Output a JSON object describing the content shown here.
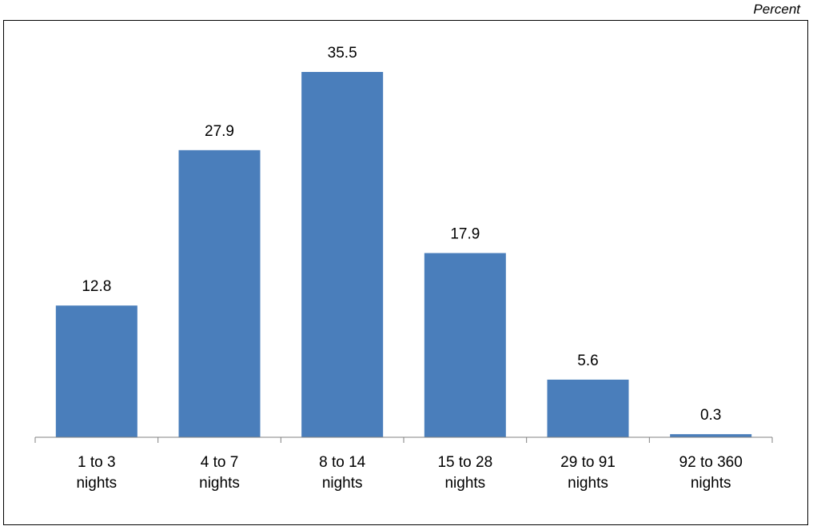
{
  "unit_label": "Percent",
  "chart_data": {
    "type": "bar",
    "categories": [
      [
        "1 to 3",
        "nights"
      ],
      [
        "4 to 7",
        "nights"
      ],
      [
        "8 to 14",
        "nights"
      ],
      [
        "15 to 28",
        "nights"
      ],
      [
        "29 to 91",
        "nights"
      ],
      [
        "92 to 360",
        "nights"
      ]
    ],
    "values": [
      12.8,
      27.9,
      35.5,
      17.9,
      5.6,
      0.3
    ],
    "data_labels": [
      "12.8",
      "27.9",
      "35.5",
      "17.9",
      "5.6",
      "0.3"
    ],
    "title": "",
    "xlabel": "",
    "ylabel": "Percent",
    "ylim": [
      0,
      40
    ],
    "grid": false,
    "legend": "none",
    "bar_color": "#4a7ebb"
  }
}
